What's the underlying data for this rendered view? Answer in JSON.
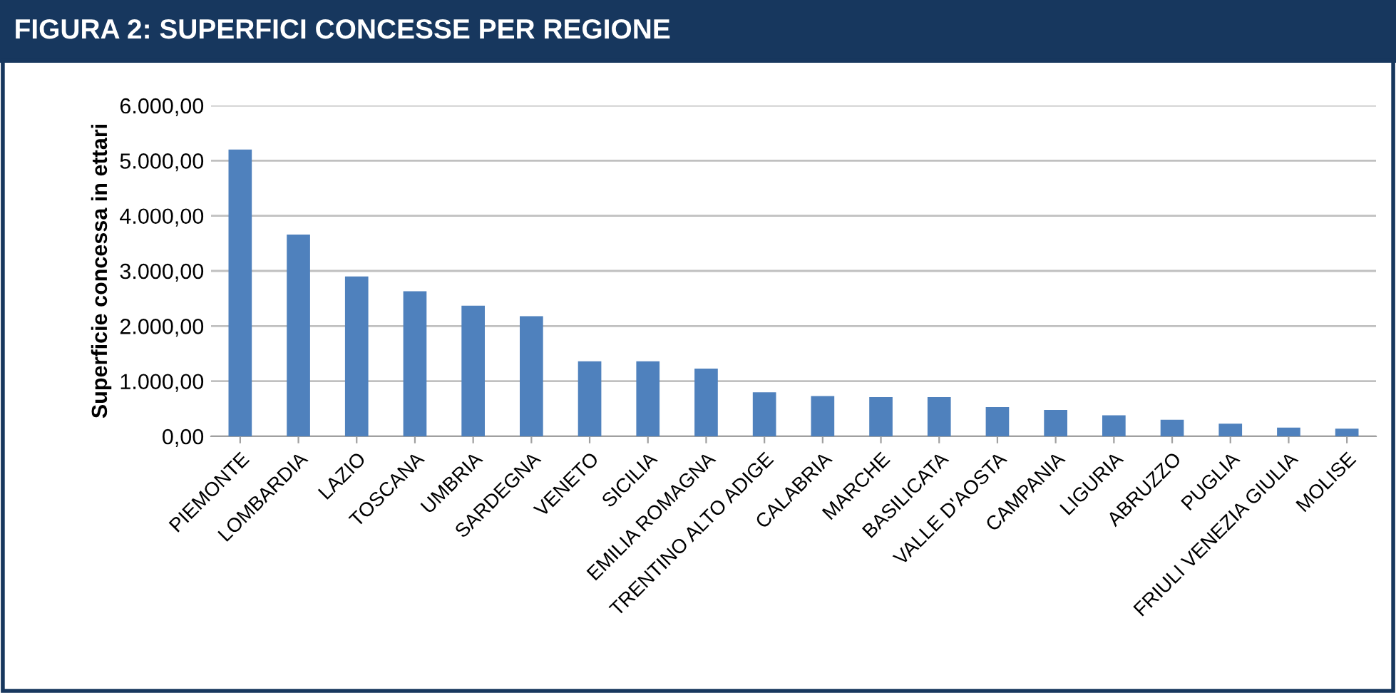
{
  "chart_data": {
    "type": "bar",
    "title": "FIGURA 2: SUPERFICI CONCESSE PER REGIONE",
    "ylabel": "Superficie concessa in ettari",
    "categories": [
      "PIEMONTE",
      "LOMBARDIA",
      "LAZIO",
      "TOSCANA",
      "UMBRIA",
      "SARDEGNA",
      "VENETO",
      "SICILIA",
      "EMILIA ROMAGNA",
      "TRENTINO ALTO ADIGE",
      "CALABRIA",
      "MARCHE",
      "BASILICATA",
      "VALLE D'AOSTA",
      "CAMPANIA",
      "LIGURIA",
      "ABRUZZO",
      "PUGLIA",
      "FRIULI VENEZIA GIULIA",
      "MOLISE"
    ],
    "values": [
      5200,
      3660,
      2900,
      2630,
      2370,
      2180,
      1360,
      1360,
      1230,
      800,
      730,
      710,
      710,
      530,
      480,
      380,
      300,
      230,
      160,
      140
    ],
    "color": "#4f81bd",
    "ylim": [
      0,
      6000
    ],
    "yticks": [
      {
        "value": 0,
        "label": "0,00"
      },
      {
        "value": 1000,
        "label": "1.000,00"
      },
      {
        "value": 2000,
        "label": "2.000,00"
      },
      {
        "value": 3000,
        "label": "3.000,00"
      },
      {
        "value": 4000,
        "label": "4.000,00"
      },
      {
        "value": 5000,
        "label": "5.000,00"
      },
      {
        "value": 6000,
        "label": "6.000,00"
      }
    ],
    "grid": "y",
    "legend": false
  }
}
